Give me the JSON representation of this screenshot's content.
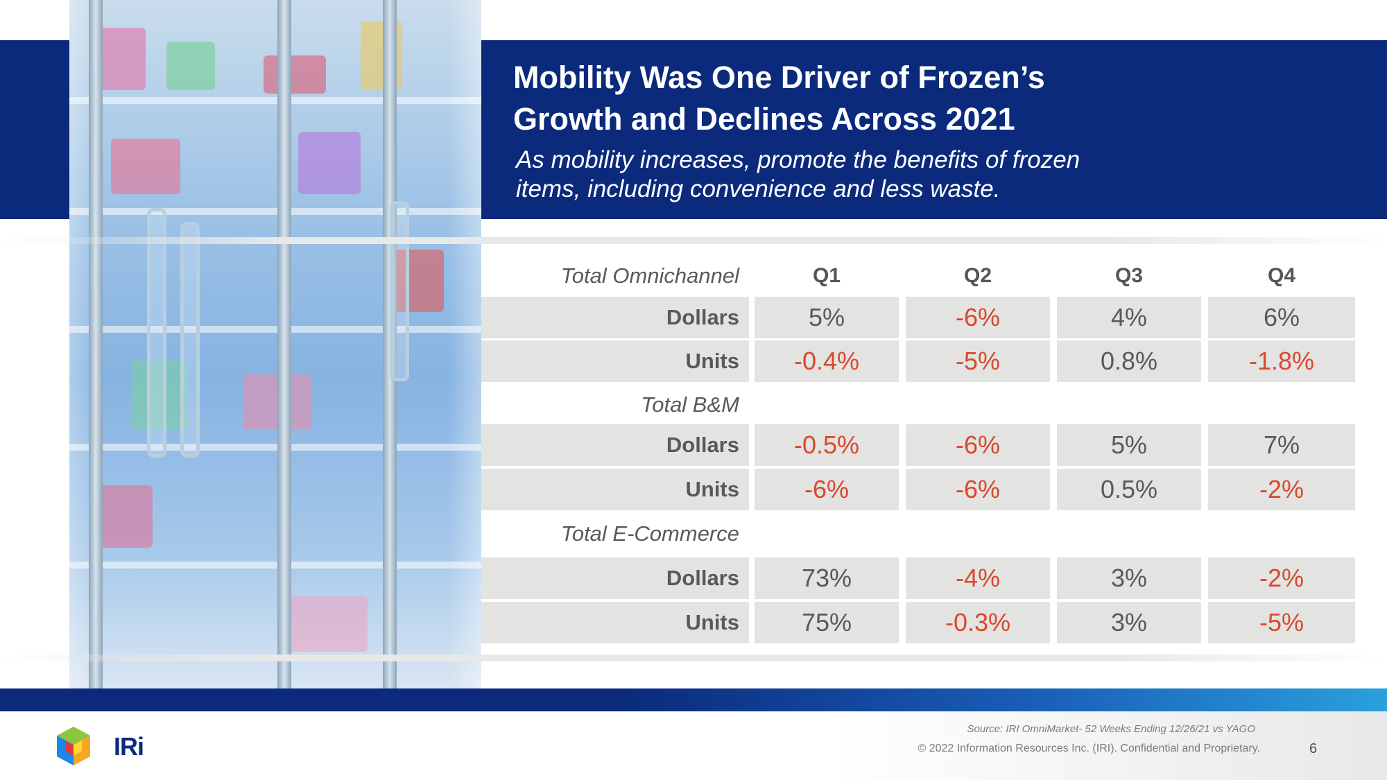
{
  "header": {
    "title_line1": "Mobility Was One Driver of Frozen’s",
    "title_line2": "Growth and Declines Across 2021",
    "subtitle_line1": "As mobility increases, promote the benefits of frozen",
    "subtitle_line2": "items, including convenience and less waste."
  },
  "table": {
    "headers": [
      "Q1",
      "Q2",
      "Q3",
      "Q4"
    ],
    "groups": [
      {
        "name": "Total Omnichannel",
        "rows": [
          {
            "label": "Dollars",
            "values": [
              "5%",
              "-6%",
              "4%",
              "6%"
            ]
          },
          {
            "label": "Units",
            "values": [
              "-0.4%",
              "-5%",
              "0.8%",
              "-1.8%"
            ]
          }
        ]
      },
      {
        "name": "Total B&M",
        "rows": [
          {
            "label": "Dollars",
            "values": [
              "-0.5%",
              "-6%",
              "5%",
              "7%"
            ]
          },
          {
            "label": "Units",
            "values": [
              "-6%",
              "-6%",
              "0.5%",
              "-2%"
            ]
          }
        ]
      },
      {
        "name": "Total E-Commerce",
        "rows": [
          {
            "label": "Dollars",
            "values": [
              "73%",
              "-4%",
              "3%",
              "-2%"
            ]
          },
          {
            "label": "Units",
            "values": [
              "75%",
              "-0.3%",
              "3%",
              "-5%"
            ]
          }
        ]
      }
    ]
  },
  "footer": {
    "logo_text": "IRi",
    "source": "Source: IRI OmniMarket- 52 Weeks Ending 12/26/21 vs YAGO",
    "copyright": "© 2022 Information Resources Inc. (IRI). Confidential and Proprietary.",
    "page_number": "6"
  },
  "colors": {
    "brand_navy": "#0b2a7c",
    "negative_red": "#d9482b",
    "cell_gray": "#e3e3e1"
  }
}
